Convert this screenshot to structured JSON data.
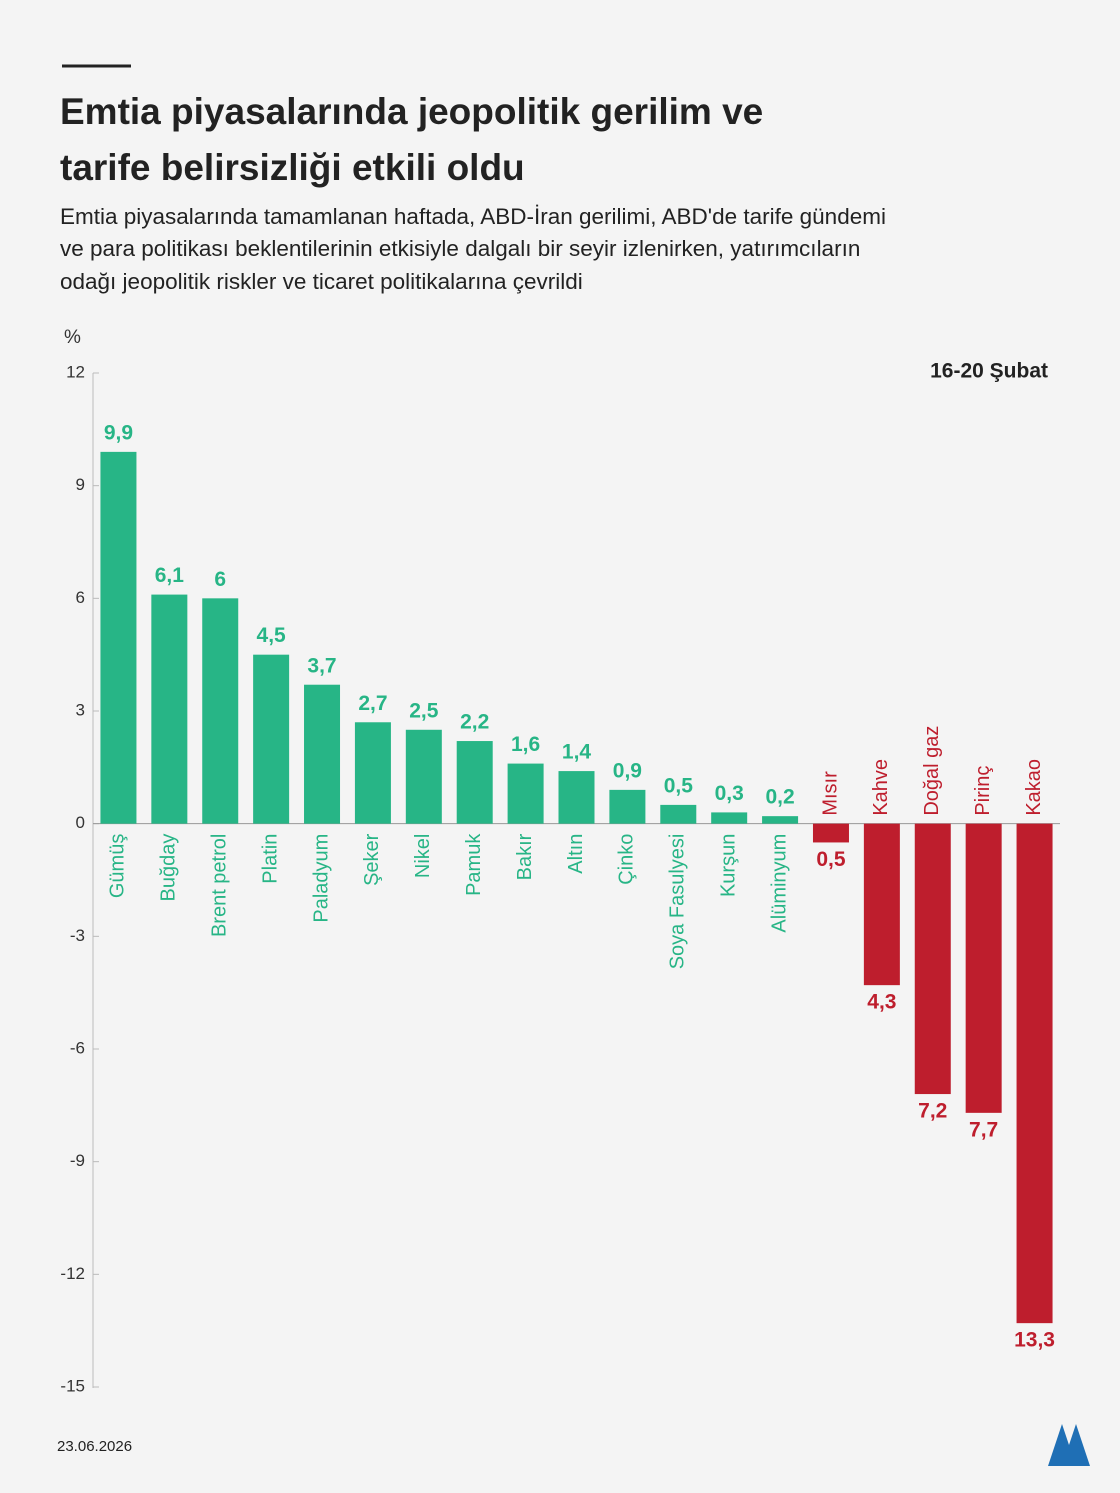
{
  "chart_data": {
    "type": "bar",
    "title_lines": [
      "Emtia piyasalarında jeopolitik gerilim ve",
      "tarife belirsizliği etkili oldu"
    ],
    "subtitle_lines": [
      "Emtia piyasalarında tamamlanan haftada, ABD-İran gerilimi, ABD'de tarife gündemi",
      "ve para politikası beklentilerinin etkisiyle dalgalı bir seyir izlenirken, yatırımcıların",
      "odağı jeopolitik riskler ve ticaret politikalarına çevrildi"
    ],
    "y_label": "%",
    "period": "16-20 Şubat",
    "date": "23.06.2026",
    "categories": [
      "Gümüş",
      "Buğday",
      "Brent petrol",
      "Platin",
      "Paladyum",
      "Şeker",
      "Nikel",
      "Pamuk",
      "Bakır",
      "Altın",
      "Çinko",
      "Soya Fasulyesi",
      "Kurşun",
      "Alüminyum",
      "Mısır",
      "Kahve",
      "Doğal gaz",
      "Pirinç",
      "Kakao"
    ],
    "values": [
      9.9,
      6.1,
      6,
      4.5,
      3.7,
      2.7,
      2.5,
      2.2,
      1.6,
      1.4,
      0.9,
      0.5,
      0.3,
      0.2,
      -0.5,
      -4.3,
      -7.2,
      -7.7,
      -13.3
    ],
    "value_labels": [
      "9,9",
      "6,1",
      "6",
      "4,5",
      "3,7",
      "2,7",
      "2,5",
      "2,2",
      "1,6",
      "1,4",
      "0,9",
      "0,5",
      "0,3",
      "0,2",
      "0,5",
      "4,3",
      "7,2",
      "7,7",
      "13,3"
    ],
    "positive_color": "#27b586",
    "negative_color": "#be1e2d",
    "ylim": [
      -15,
      12
    ],
    "yticks": [
      12,
      9,
      6,
      3,
      0,
      -3,
      -6,
      -9,
      -12,
      -15
    ]
  }
}
